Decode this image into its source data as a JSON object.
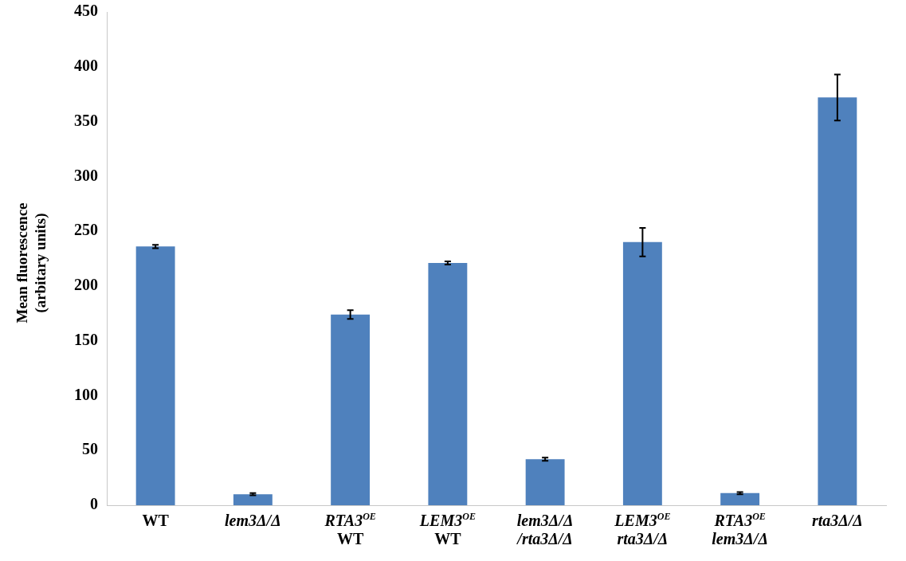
{
  "chart_data": {
    "type": "bar",
    "ylabel": "Mean fluorescence\n(arbitary units)",
    "categories": [
      "WT",
      "lem3Δ/Δ",
      "RTA3$^{OE}$\nWT",
      "LEM3$^{OE}$\nWT",
      "lem3Δ/Δ\n/rta3Δ/Δ",
      "LEM3$^{OE}$\nrta3Δ/Δ",
      "RTA3$^{OE}$\nlem3Δ/Δ",
      "rta3Δ/Δ"
    ],
    "values": [
      236,
      10,
      174,
      221,
      42,
      240,
      11,
      372
    ],
    "errors": [
      1.5,
      1,
      4,
      1.5,
      1.5,
      13,
      1,
      21
    ],
    "color": "#4f81bd",
    "ylim": [
      0,
      450
    ],
    "yticks": [
      0,
      50,
      100,
      150,
      200,
      250,
      300,
      350,
      400,
      450
    ],
    "grid": false,
    "legend": false
  }
}
